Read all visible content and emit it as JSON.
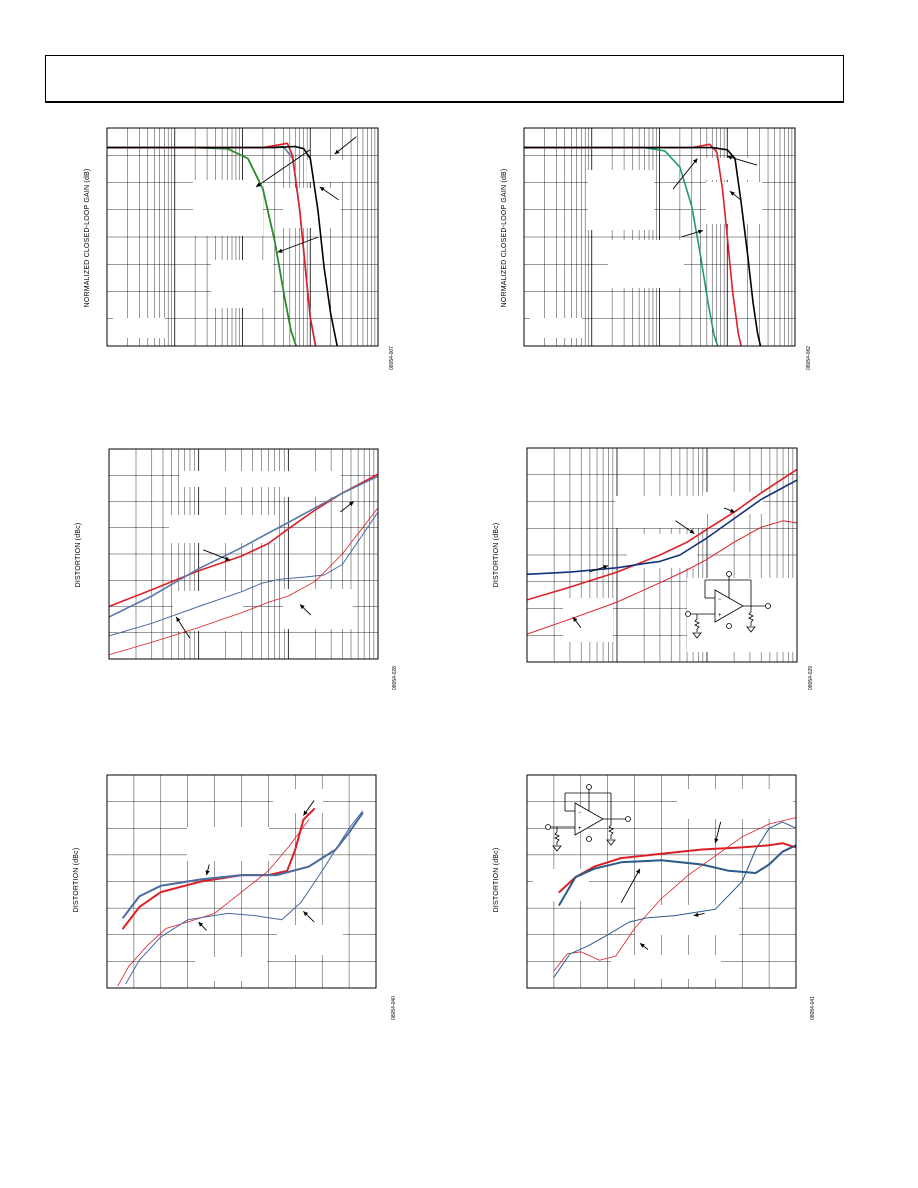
{
  "page": {
    "header": ""
  },
  "charts": [
    {
      "id": "fig1",
      "ylabel": "NORMALIZED CLOSED-LOOP GAIN (dB)",
      "figure_id": "08054-007",
      "chart_data": {
        "type": "line",
        "xscale": "log",
        "xlim": [
          1,
          10000
        ],
        "ylim": [
          0,
          1
        ],
        "grid": true,
        "series": [
          {
            "color": "#2a8a2a",
            "width": 1.8,
            "x": [
              1,
              20,
              60,
              120,
              200,
              300,
              420,
              520,
              620
            ],
            "y": [
              0.91,
              0.91,
              0.905,
              0.86,
              0.72,
              0.48,
              0.22,
              0.07,
              0.0
            ]
          },
          {
            "color": "#5a7aaa",
            "width": 1.6,
            "x": [
              1,
              200,
              400,
              550,
              700,
              850,
              1000,
              1200
            ],
            "y": [
              0.91,
              0.91,
              0.915,
              0.86,
              0.62,
              0.35,
              0.13,
              0.0
            ]
          },
          {
            "color": "#dd1f26",
            "width": 1.6,
            "x": [
              1,
              200,
              380,
              460,
              550,
              700,
              850,
              1000,
              1200
            ],
            "y": [
              0.91,
              0.91,
              0.925,
              0.93,
              0.87,
              0.62,
              0.35,
              0.13,
              0.0
            ]
          },
          {
            "color": "#000000",
            "width": 1.6,
            "x": [
              1,
              300,
              600,
              800,
              1000,
              1300,
              1600,
              2000,
              2500
            ],
            "y": [
              0.91,
              0.91,
              0.915,
              0.905,
              0.86,
              0.62,
              0.36,
              0.15,
              0.0
            ]
          }
        ],
        "arrows": [
          [
            7.5,
            0.9,
            5.5,
            0.73
          ],
          [
            7.8,
            0.5,
            6.3,
            0.43
          ],
          [
            8.55,
            0.67,
            7.85,
            0.73
          ],
          [
            9.2,
            0.96,
            8.4,
            0.88
          ]
        ]
      }
    },
    {
      "id": "fig2",
      "ylabel": "NORMALIZED CLOSED-LOOP GAIN (dB)",
      "figure_id": "08054-082",
      "chart_data": {
        "type": "line",
        "xscale": "log",
        "xlim": [
          1,
          10000
        ],
        "ylim": [
          0,
          1
        ],
        "grid": true,
        "series": [
          {
            "color": "#1f9a6a",
            "width": 1.6,
            "x": [
              1,
              60,
              120,
              200,
              300,
              400,
              520,
              640,
              720
            ],
            "y": [
              0.91,
              0.91,
              0.895,
              0.82,
              0.64,
              0.42,
              0.2,
              0.05,
              0.0
            ]
          },
          {
            "color": "#dd1f26",
            "width": 1.6,
            "x": [
              1,
              300,
              550,
              700,
              850,
              1000,
              1200,
              1450,
              1600
            ],
            "y": [
              0.91,
              0.91,
              0.925,
              0.89,
              0.72,
              0.5,
              0.25,
              0.06,
              0.0
            ]
          },
          {
            "color": "#000000",
            "width": 1.6,
            "x": [
              1,
              600,
              1000,
              1300,
              1600,
              2000,
              2400,
              2800,
              3100
            ],
            "y": [
              0.91,
              0.91,
              0.9,
              0.86,
              0.66,
              0.42,
              0.2,
              0.06,
              0.0
            ]
          }
        ],
        "arrows": [
          [
            5.5,
            0.72,
            6.4,
            0.86
          ],
          [
            5.8,
            0.5,
            6.6,
            0.53
          ],
          [
            8.0,
            0.67,
            7.6,
            0.71
          ],
          [
            8.6,
            0.83,
            7.5,
            0.87
          ]
        ]
      }
    },
    {
      "id": "fig3",
      "ylabel": "DISTORTION (dBc)",
      "figure_id": "08054-028",
      "chart_data": {
        "type": "line",
        "xscale": "log",
        "xlim": [
          0.1,
          100
        ],
        "ylim": [
          0,
          1
        ],
        "grid": true,
        "series": [
          {
            "color": "#dd1f26",
            "width": 1.6,
            "x": [
              0.1,
              0.3,
              1,
              3,
              6,
              10,
              20,
              40,
              100
            ],
            "y": [
              0.25,
              0.33,
              0.42,
              0.49,
              0.55,
              0.62,
              0.71,
              0.79,
              0.88
            ]
          },
          {
            "color": "#5a7aaa",
            "width": 1.6,
            "x": [
              0.1,
              0.3,
              1,
              3,
              6,
              10,
              20,
              40,
              100
            ],
            "y": [
              0.2,
              0.3,
              0.43,
              0.53,
              0.6,
              0.65,
              0.72,
              0.79,
              0.87
            ]
          },
          {
            "color": "#4a6aa0",
            "width": 1.0,
            "x": [
              0.1,
              0.3,
              1,
              3,
              5,
              8,
              15,
              25,
              40,
              60,
              100
            ],
            "y": [
              0.11,
              0.17,
              0.25,
              0.32,
              0.36,
              0.38,
              0.39,
              0.4,
              0.45,
              0.56,
              0.7
            ]
          },
          {
            "color": "#dd1f26",
            "width": 0.8,
            "x": [
              0.1,
              0.3,
              1,
              3,
              6,
              10,
              20,
              40,
              100
            ],
            "y": [
              0.02,
              0.08,
              0.15,
              0.22,
              0.27,
              0.3,
              0.37,
              0.5,
              0.72
            ]
          }
        ],
        "arrows": [
          [
            0.35,
            0.52,
            0.45,
            0.47
          ],
          [
            0.3,
            0.1,
            0.25,
            0.2
          ],
          [
            0.75,
            0.21,
            0.71,
            0.26
          ],
          [
            0.86,
            0.7,
            0.91,
            0.75
          ]
        ]
      }
    },
    {
      "id": "fig4",
      "ylabel": "DISTORTION (dBc)",
      "figure_id": "08054-029",
      "chart_data": {
        "type": "line",
        "xscale": "log",
        "xlim": [
          0.1,
          100
        ],
        "ylim": [
          0,
          1
        ],
        "grid": true,
        "series": [
          {
            "color": "#dd1f26",
            "width": 1.6,
            "x": [
              0.1,
              0.3,
              1,
              3,
              6,
              10,
              20,
              40,
              100
            ],
            "y": [
              0.29,
              0.35,
              0.42,
              0.5,
              0.56,
              0.62,
              0.7,
              0.79,
              0.9
            ]
          },
          {
            "color": "#14307a",
            "width": 1.6,
            "x": [
              0.1,
              0.3,
              1,
              2,
              3,
              5,
              10,
              20,
              40,
              100
            ],
            "y": [
              0.41,
              0.42,
              0.44,
              0.46,
              0.47,
              0.5,
              0.58,
              0.67,
              0.76,
              0.85
            ]
          },
          {
            "color": "#dd1f26",
            "width": 1.0,
            "x": [
              0.1,
              0.3,
              1,
              3,
              6,
              10,
              20,
              40,
              70,
              100
            ],
            "y": [
              0.13,
              0.2,
              0.28,
              0.37,
              0.43,
              0.48,
              0.56,
              0.63,
              0.66,
              0.65
            ]
          }
        ],
        "arrows": [
          [
            0.55,
            0.66,
            0.62,
            0.6
          ],
          [
            0.23,
            0.42,
            0.3,
            0.45
          ],
          [
            0.2,
            0.16,
            0.17,
            0.21
          ],
          [
            0.73,
            0.72,
            0.77,
            0.7
          ]
        ]
      }
    },
    {
      "id": "fig5",
      "ylabel": "DISTORTION (dBc)",
      "figure_id": "08054-040",
      "chart_data": {
        "type": "line",
        "xscale": "linear",
        "xlim": [
          0,
          1
        ],
        "ylim": [
          0,
          1
        ],
        "grid": true,
        "series": [
          {
            "color": "#dd1f26",
            "width": 2.0,
            "x": [
              0.06,
              0.12,
              0.2,
              0.35,
              0.5,
              0.6,
              0.67,
              0.7,
              0.73,
              0.77
            ],
            "y": [
              0.28,
              0.38,
              0.45,
              0.5,
              0.53,
              0.53,
              0.55,
              0.65,
              0.79,
              0.84
            ]
          },
          {
            "color": "#4a6aa0",
            "width": 2.0,
            "x": [
              0.06,
              0.12,
              0.2,
              0.35,
              0.5,
              0.63,
              0.75,
              0.85,
              0.9,
              0.95
            ],
            "y": [
              0.33,
              0.43,
              0.48,
              0.51,
              0.53,
              0.53,
              0.57,
              0.65,
              0.73,
              0.82
            ]
          },
          {
            "color": "#dd1f26",
            "width": 0.8,
            "x": [
              0.04,
              0.08,
              0.15,
              0.22,
              0.3,
              0.4,
              0.5,
              0.6,
              0.68,
              0.75
            ],
            "y": [
              0.01,
              0.1,
              0.2,
              0.28,
              0.31,
              0.35,
              0.45,
              0.55,
              0.67,
              0.79
            ]
          },
          {
            "color": "#4a6aa0",
            "width": 1.0,
            "x": [
              0.07,
              0.12,
              0.2,
              0.3,
              0.45,
              0.55,
              0.65,
              0.72,
              0.8,
              0.9,
              0.95
            ],
            "y": [
              0.02,
              0.13,
              0.24,
              0.32,
              0.35,
              0.34,
              0.32,
              0.4,
              0.55,
              0.75,
              0.83
            ]
          }
        ],
        "arrows": [
          [
            0.77,
            0.88,
            0.73,
            0.81
          ],
          [
            0.38,
            0.58,
            0.37,
            0.53
          ],
          [
            0.37,
            0.27,
            0.34,
            0.31
          ],
          [
            0.77,
            0.31,
            0.73,
            0.36
          ]
        ]
      }
    },
    {
      "id": "fig6",
      "ylabel": "DISTORTION (dBc)",
      "figure_id": "08054-041",
      "chart_data": {
        "type": "line",
        "xscale": "linear",
        "xlim": [
          0,
          1
        ],
        "ylim": [
          0,
          1
        ],
        "grid": true,
        "series": [
          {
            "color": "#dd1f26",
            "width": 2.0,
            "x": [
              0.12,
              0.18,
              0.25,
              0.35,
              0.5,
              0.65,
              0.8,
              0.9,
              0.95,
              1.0
            ],
            "y": [
              0.45,
              0.52,
              0.57,
              0.61,
              0.63,
              0.65,
              0.66,
              0.67,
              0.68,
              0.66
            ]
          },
          {
            "color": "#2a5a8a",
            "width": 2.0,
            "x": [
              0.12,
              0.18,
              0.25,
              0.35,
              0.5,
              0.65,
              0.75,
              0.85,
              0.9,
              0.95,
              1.0
            ],
            "y": [
              0.39,
              0.52,
              0.56,
              0.59,
              0.6,
              0.58,
              0.55,
              0.54,
              0.58,
              0.64,
              0.67
            ]
          },
          {
            "color": "#dd1f26",
            "width": 0.8,
            "x": [
              0.1,
              0.15,
              0.2,
              0.27,
              0.33,
              0.4,
              0.5,
              0.6,
              0.7,
              0.8,
              0.9,
              1.0
            ],
            "y": [
              0.08,
              0.16,
              0.17,
              0.13,
              0.15,
              0.28,
              0.42,
              0.53,
              0.62,
              0.71,
              0.77,
              0.8
            ]
          },
          {
            "color": "#2a5a8a",
            "width": 1.0,
            "x": [
              0.1,
              0.16,
              0.23,
              0.3,
              0.38,
              0.45,
              0.55,
              0.7,
              0.8,
              0.85,
              0.9,
              0.95,
              1.0
            ],
            "y": [
              0.05,
              0.16,
              0.2,
              0.25,
              0.31,
              0.33,
              0.34,
              0.37,
              0.5,
              0.65,
              0.75,
              0.78,
              0.75
            ]
          }
        ],
        "arrows": [
          [
            0.72,
            0.78,
            0.7,
            0.68
          ],
          [
            0.35,
            0.4,
            0.42,
            0.56
          ],
          [
            0.66,
            0.35,
            0.62,
            0.34
          ],
          [
            0.45,
            0.18,
            0.42,
            0.21
          ]
        ]
      }
    }
  ]
}
